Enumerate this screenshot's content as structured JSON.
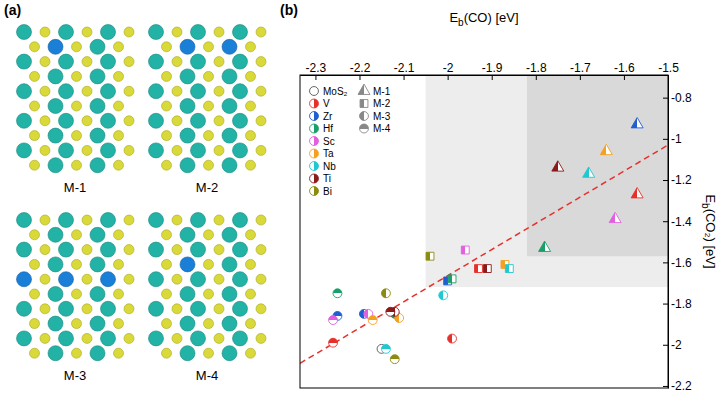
{
  "panel_a": {
    "label": "(a)",
    "structures": [
      "M-1",
      "M-2",
      "M-3",
      "M-4"
    ]
  },
  "chart_data": {
    "type": "scatter",
    "panel_label": "(b)",
    "x_label": {
      "text": "E",
      "subscript": "b",
      "suffix": "(CO) [eV]"
    },
    "y_label": {
      "text": "E",
      "subscript": "b",
      "suffix": "(CO₂) [eV]"
    },
    "xlim": [
      -2.335,
      -1.5
    ],
    "xticks": [
      -2.3,
      -2.2,
      -2.1,
      -2.0,
      -1.9,
      -1.8,
      -1.7,
      -1.6,
      -1.5
    ],
    "ylim": [
      -2.21,
      -0.69
    ],
    "yticks": [
      -2.2,
      -2.0,
      -1.8,
      -1.6,
      -1.4,
      -1.2,
      -1.0,
      -0.8
    ],
    "legend": "top-left",
    "structure_markers": [
      {
        "name": "M-1",
        "marker": "half-triangle"
      },
      {
        "name": "M-2",
        "marker": "half-square"
      },
      {
        "name": "M-3",
        "marker": "left-half-circle"
      },
      {
        "name": "M-4",
        "marker": "top-half-circle"
      }
    ],
    "series": [
      {
        "name": "MoS₂",
        "color": "#555555",
        "marker": "open-circle",
        "x": [
          -2.15
        ],
        "values": [
          -2.02
        ]
      },
      {
        "name": "V",
        "color": "#e8302a",
        "marker": "right-half-circle",
        "x": [
          -1.57,
          -1.93,
          -1.99,
          -2.26
        ],
        "values": [
          -1.27,
          -1.63,
          -1.97,
          -1.99
        ],
        "structure": [
          "M-1",
          "M-2",
          "M-3",
          "M-4"
        ]
      },
      {
        "name": "Zr",
        "color": "#1f5fd0",
        "marker": "right-half-circle",
        "x": [
          -1.57,
          -2.0,
          -2.19,
          -2.25
        ],
        "values": [
          -0.93,
          -1.69,
          -1.85,
          -1.86
        ],
        "structure": [
          "M-1",
          "M-2",
          "M-3",
          "M-4"
        ]
      },
      {
        "name": "Hf",
        "color": "#1a9e6a",
        "marker": "right-half-circle",
        "x": [
          -1.78,
          -1.99,
          -2.12,
          -2.25
        ],
        "values": [
          -1.53,
          -1.68,
          -1.85,
          -1.75
        ],
        "structure": [
          "M-1",
          "M-2",
          "M-3",
          "M-4"
        ]
      },
      {
        "name": "Sc",
        "color": "#e060e0",
        "marker": "right-half-circle",
        "x": [
          -1.62,
          -1.96,
          -2.18,
          -2.26
        ],
        "values": [
          -1.39,
          -1.54,
          -1.85,
          -1.88
        ],
        "structure": [
          "M-1",
          "M-2",
          "M-3",
          "M-4"
        ]
      },
      {
        "name": "Ta",
        "color": "#f5a020",
        "marker": "right-half-circle",
        "x": [
          -1.64,
          -1.87,
          -2.11,
          -2.17
        ],
        "values": [
          -1.06,
          -1.61,
          -1.87,
          -1.88
        ],
        "structure": [
          "M-1",
          "M-2",
          "M-3",
          "M-4"
        ]
      },
      {
        "name": "Nb",
        "color": "#20c8d0",
        "marker": "right-half-circle",
        "x": [
          -1.68,
          -1.86,
          -2.01,
          -2.14
        ],
        "values": [
          -1.17,
          -1.63,
          -1.76,
          -2.02
        ],
        "structure": [
          "M-1",
          "M-2",
          "M-3",
          "M-4"
        ]
      },
      {
        "name": "Ti",
        "color": "#8b1a1a",
        "marker": "right-half-circle",
        "x": [
          -1.75,
          -1.91,
          -2.12,
          -2.13
        ],
        "values": [
          -1.14,
          -1.63,
          -1.84,
          -1.84
        ],
        "structure": [
          "M-1",
          "M-2",
          "M-3",
          "M-4"
        ]
      },
      {
        "name": "Bi",
        "color": "#8b8b10",
        "marker": "right-half-circle",
        "x": [
          -2.04,
          -2.14,
          -2.12
        ],
        "values": [
          -1.57,
          -1.75,
          -2.07
        ],
        "structure": [
          "M-2",
          "M-3",
          "M-4"
        ]
      }
    ],
    "shaded_regions": [
      {
        "xlim": [
          -2.05,
          -1.5
        ],
        "ylim": [
          -1.72,
          -0.69
        ],
        "color": "#ededed"
      },
      {
        "xlim": [
          -1.82,
          -1.5
        ],
        "ylim": [
          -1.57,
          -0.69
        ],
        "color": "#d9d9d9"
      }
    ],
    "fit_line": {
      "x": [
        -2.335,
        -1.5
      ],
      "values": [
        -2.09,
        -1.03
      ],
      "color": "#e8302a",
      "line_style": "dashed"
    }
  }
}
